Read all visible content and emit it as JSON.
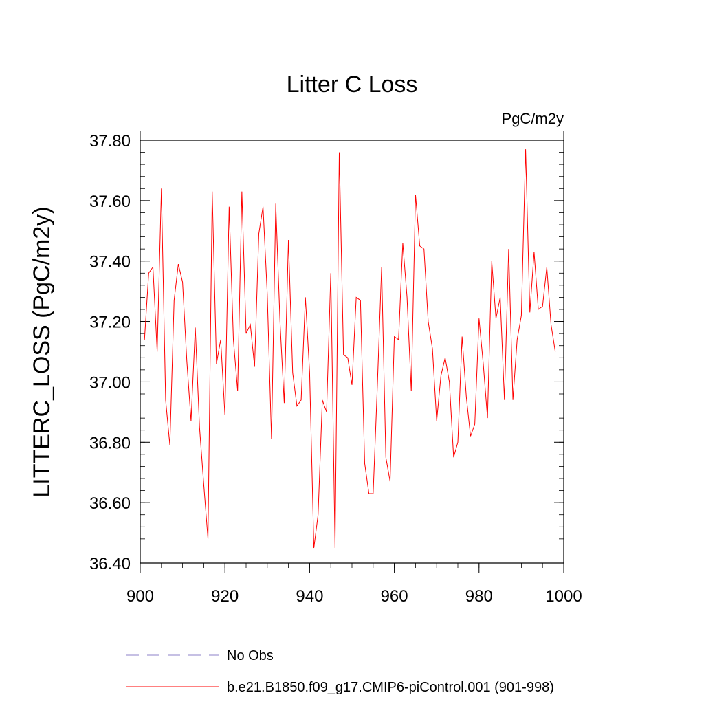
{
  "chart_data": {
    "type": "line",
    "title": "Litter C Loss",
    "units_label": "PgC/m2y",
    "xlabel": "",
    "ylabel": "LITTERC_LOSS  (PgC/m2y)",
    "xlim": [
      900,
      1000
    ],
    "ylim": [
      36.4,
      37.8
    ],
    "x_ticks": [
      900,
      920,
      940,
      960,
      980,
      1000
    ],
    "y_ticks": [
      "36.40",
      "36.60",
      "36.80",
      "37.00",
      "37.20",
      "37.40",
      "37.60",
      "37.80"
    ],
    "grid": false,
    "series": [
      {
        "name": "b.e21.B1850.f09_g17.CMIP6-piControl.001 (901-998)",
        "color": "#ff0000",
        "style": "solid",
        "x": [
          901,
          902,
          903,
          904,
          905,
          906,
          907,
          908,
          909,
          910,
          911,
          912,
          913,
          914,
          915,
          916,
          917,
          918,
          919,
          920,
          921,
          922,
          923,
          924,
          925,
          926,
          927,
          928,
          929,
          930,
          931,
          932,
          933,
          934,
          935,
          936,
          937,
          938,
          939,
          940,
          941,
          942,
          943,
          944,
          945,
          946,
          947,
          948,
          949,
          950,
          951,
          952,
          953,
          954,
          955,
          956,
          957,
          958,
          959,
          960,
          961,
          962,
          963,
          964,
          965,
          966,
          967,
          968,
          969,
          970,
          971,
          972,
          973,
          974,
          975,
          976,
          977,
          978,
          979,
          980,
          981,
          982,
          983,
          984,
          985,
          986,
          987,
          988,
          989,
          990,
          991,
          992,
          993,
          994,
          995,
          996,
          997,
          998
        ],
        "values": [
          37.14,
          37.36,
          37.38,
          37.1,
          37.64,
          36.94,
          36.79,
          37.27,
          37.39,
          37.33,
          37.07,
          36.87,
          37.18,
          36.85,
          36.66,
          36.48,
          37.63,
          37.06,
          37.14,
          36.89,
          37.58,
          37.14,
          36.97,
          37.63,
          37.16,
          37.19,
          37.05,
          37.49,
          37.58,
          37.29,
          36.81,
          37.59,
          37.2,
          36.93,
          37.47,
          37.03,
          36.92,
          36.94,
          37.28,
          37.03,
          36.45,
          36.56,
          36.94,
          36.9,
          37.36,
          36.45,
          37.76,
          37.09,
          37.08,
          36.99,
          37.28,
          37.27,
          36.73,
          36.63,
          36.63,
          36.99,
          37.38,
          36.75,
          36.67,
          37.15,
          37.14,
          37.46,
          37.28,
          36.97,
          37.62,
          37.45,
          37.44,
          37.2,
          37.11,
          36.87,
          37.02,
          37.08,
          37.0,
          36.75,
          36.8,
          37.15,
          36.95,
          36.82,
          36.86,
          37.21,
          37.06,
          36.88,
          37.4,
          37.21,
          37.28,
          36.94,
          37.44,
          36.94,
          37.14,
          37.22,
          37.77,
          37.23,
          37.43,
          37.24,
          37.25,
          37.38,
          37.19,
          37.1
        ]
      },
      {
        "name": "No Obs",
        "color": "#8c80c8",
        "style": "dashed",
        "x": [],
        "values": []
      }
    ],
    "legend_position": "bottom-left"
  }
}
